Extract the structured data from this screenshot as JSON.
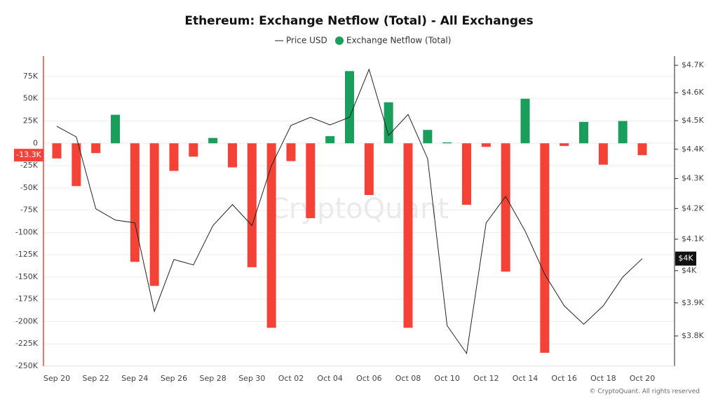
{
  "chart_data": {
    "type": "bar-line",
    "title": "Ethereum: Exchange Netflow (Total) - All Exchanges",
    "watermark": "CryptoQuant",
    "copyright": "© CryptoQuant. All rights reserved",
    "categories": [
      "Sep 20",
      null,
      "Sep 22",
      null,
      "Sep 24",
      null,
      "Sep 26",
      null,
      "Sep 28",
      null,
      "Sep 30",
      null,
      "Oct 02",
      null,
      "Oct 04",
      null,
      "Oct 06",
      null,
      "Oct 08",
      null,
      "Oct 10",
      null,
      "Oct 12",
      null,
      "Oct 14",
      null,
      "Oct 16",
      null,
      "Oct 18",
      null,
      "Oct 20"
    ],
    "series": [
      {
        "name": "Exchange Netflow (Total)",
        "type": "bar",
        "color_pos": "#1a9e5c",
        "color_neg": "#f44336",
        "values": [
          -17000,
          -48000,
          -11000,
          32000,
          -133000,
          -160000,
          -31000,
          -15000,
          6000,
          -27000,
          -139000,
          -207000,
          -20000,
          -84000,
          8000,
          81000,
          -58000,
          46000,
          -207000,
          15000,
          1000,
          -69000,
          -4000,
          -144000,
          50000,
          -235000,
          -3000,
          24000,
          -24000,
          25000,
          -13300
        ],
        "last_label": "-13.3K"
      },
      {
        "name": "Price USD",
        "type": "line",
        "axis": "y2",
        "color": "#222",
        "values": [
          4480,
          4443,
          4199,
          4162,
          4153,
          3874,
          4035,
          4018,
          4144,
          4213,
          4144,
          4344,
          4483,
          4512,
          4485,
          4512,
          4685,
          4448,
          4522,
          4368,
          3831,
          3748,
          4153,
          4240,
          4126,
          3989,
          3891,
          3835,
          3891,
          3980,
          4038
        ],
        "last_label": "$4K"
      }
    ],
    "ylim": [
      -250000,
      97800
    ],
    "yticks": [
      {
        "value": 75000,
        "label": "75K"
      },
      {
        "value": 50000,
        "label": "50K"
      },
      {
        "value": 25000,
        "label": "25K"
      },
      0,
      {
        "value": -25000,
        "label": "-25K"
      },
      {
        "value": -50000,
        "label": "-50K"
      },
      {
        "value": -75000,
        "label": "-75K"
      },
      {
        "value": -100000,
        "label": "-100K"
      },
      {
        "value": -125000,
        "label": "-125K"
      },
      {
        "value": -150000,
        "label": "-150K"
      },
      {
        "value": -175000,
        "label": "-175K"
      },
      {
        "value": -200000,
        "label": "-200K"
      },
      {
        "value": -225000,
        "label": "-225K"
      },
      {
        "value": -250000,
        "label": "-250K"
      }
    ],
    "y2lim": [
      3711,
      4734
    ],
    "y2scale": "log",
    "y2ticks": [
      {
        "value": 4700,
        "label": "$4.7K"
      },
      {
        "value": 4600,
        "label": "$4.6K"
      },
      {
        "value": 4500,
        "label": "$4.5K"
      },
      {
        "value": 4400,
        "label": "$4.4K"
      },
      {
        "value": 4300,
        "label": "$4.3K"
      },
      {
        "value": 4200,
        "label": "$4.2K"
      },
      {
        "value": 4100,
        "label": "$4.1K"
      },
      {
        "value": 4000,
        "label": "$4K"
      },
      {
        "value": 3900,
        "label": "$3.9K"
      },
      {
        "value": 3800,
        "label": "$3.8K"
      }
    ],
    "grid": true
  }
}
